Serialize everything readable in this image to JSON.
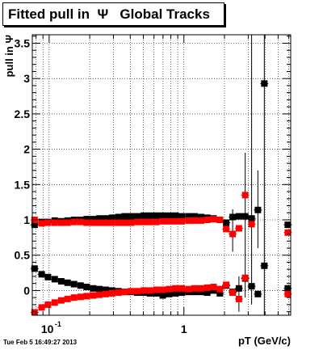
{
  "header": {
    "title": "Fitted pull in  Ψ   Global Tracks"
  },
  "footer": {
    "timestamp": "Tue Feb  5 16:49:27 2013"
  },
  "chart_data": {
    "type": "scatter",
    "title": "Fitted pull in  Ψ   Global Tracks",
    "xlabel": "pT (GeV/c)",
    "ylabel": "pull in Ψ",
    "xscale": "log",
    "xlim": [
      0.075,
      6.2
    ],
    "ylim": [
      -0.35,
      3.62
    ],
    "x_ticks": [
      {
        "value": 0.1,
        "base": "10",
        "exp": "-1"
      },
      {
        "value": 1,
        "label": "1"
      }
    ],
    "y_ticks": [
      0,
      0.5,
      1,
      1.5,
      2,
      2.5,
      3,
      3.5
    ],
    "grid": true,
    "colors": {
      "mean": "#000000",
      "sigma": "#ff0000"
    },
    "series": [
      {
        "color": "#000000",
        "points": [
          {
            "x": 0.078,
            "y": 0.93
          },
          {
            "x": 0.088,
            "y": 0.97
          },
          {
            "x": 0.098,
            "y": 0.97
          },
          {
            "x": 0.11,
            "y": 0.99
          },
          {
            "x": 0.123,
            "y": 0.98
          },
          {
            "x": 0.137,
            "y": 0.99
          },
          {
            "x": 0.153,
            "y": 1.0
          },
          {
            "x": 0.171,
            "y": 1.0
          },
          {
            "x": 0.19,
            "y": 1.01
          },
          {
            "x": 0.212,
            "y": 1.01
          },
          {
            "x": 0.236,
            "y": 1.02
          },
          {
            "x": 0.263,
            "y": 1.02
          },
          {
            "x": 0.293,
            "y": 1.03
          },
          {
            "x": 0.327,
            "y": 1.04
          },
          {
            "x": 0.364,
            "y": 1.05
          },
          {
            "x": 0.406,
            "y": 1.05
          },
          {
            "x": 0.452,
            "y": 1.05
          },
          {
            "x": 0.504,
            "y": 1.06
          },
          {
            "x": 0.561,
            "y": 1.06
          },
          {
            "x": 0.625,
            "y": 1.06
          },
          {
            "x": 0.697,
            "y": 1.06
          },
          {
            "x": 0.777,
            "y": 1.06
          },
          {
            "x": 0.866,
            "y": 1.06
          },
          {
            "x": 0.965,
            "y": 1.05
          },
          {
            "x": 1.08,
            "y": 1.05
          },
          {
            "x": 1.2,
            "y": 1.05
          },
          {
            "x": 1.34,
            "y": 1.04
          },
          {
            "x": 1.49,
            "y": 1.03
          },
          {
            "x": 1.66,
            "y": 1.02
          },
          {
            "x": 1.85,
            "y": 1.0
          },
          {
            "x": 2.06,
            "y": 0.96
          },
          {
            "x": 2.3,
            "y": 1.04
          },
          {
            "x": 2.56,
            "y": 1.05
          },
          {
            "x": 2.85,
            "y": 1.05
          },
          {
            "x": 3.18,
            "y": 1.02
          },
          {
            "x": 3.54,
            "y": 1.14
          },
          {
            "x": 3.95,
            "y": 2.93
          },
          {
            "x": 5.9,
            "y": 0.93
          }
        ]
      },
      {
        "color": "#ff0000",
        "points": [
          {
            "x": 0.078,
            "y": 1.0
          },
          {
            "x": 0.088,
            "y": 0.95
          },
          {
            "x": 0.098,
            "y": 0.96
          },
          {
            "x": 0.11,
            "y": 0.96
          },
          {
            "x": 0.123,
            "y": 0.96
          },
          {
            "x": 0.137,
            "y": 0.96
          },
          {
            "x": 0.153,
            "y": 0.97
          },
          {
            "x": 0.171,
            "y": 0.97
          },
          {
            "x": 0.19,
            "y": 0.96
          },
          {
            "x": 0.212,
            "y": 0.96
          },
          {
            "x": 0.236,
            "y": 0.96
          },
          {
            "x": 0.263,
            "y": 0.96
          },
          {
            "x": 0.293,
            "y": 0.96
          },
          {
            "x": 0.327,
            "y": 0.96
          },
          {
            "x": 0.364,
            "y": 0.96
          },
          {
            "x": 0.406,
            "y": 0.96
          },
          {
            "x": 0.452,
            "y": 0.97
          },
          {
            "x": 0.504,
            "y": 0.97
          },
          {
            "x": 0.561,
            "y": 0.97
          },
          {
            "x": 0.625,
            "y": 0.97
          },
          {
            "x": 0.697,
            "y": 0.98
          },
          {
            "x": 0.777,
            "y": 0.98
          },
          {
            "x": 0.866,
            "y": 0.98
          },
          {
            "x": 0.965,
            "y": 0.98
          },
          {
            "x": 1.08,
            "y": 0.99
          },
          {
            "x": 1.2,
            "y": 0.99
          },
          {
            "x": 1.34,
            "y": 0.99
          },
          {
            "x": 1.49,
            "y": 1.0
          },
          {
            "x": 1.66,
            "y": 1.01
          },
          {
            "x": 1.85,
            "y": 1.0
          },
          {
            "x": 2.06,
            "y": 0.87
          },
          {
            "x": 2.3,
            "y": 0.8
          },
          {
            "x": 2.56,
            "y": 0.88
          },
          {
            "x": 2.85,
            "y": 1.35
          },
          {
            "x": 3.18,
            "y": 0.94
          },
          {
            "x": 5.9,
            "y": 0.82
          }
        ]
      },
      {
        "color": "#000000",
        "points": [
          {
            "x": 0.078,
            "y": 0.31
          },
          {
            "x": 0.088,
            "y": 0.23
          },
          {
            "x": 0.098,
            "y": 0.19
          },
          {
            "x": 0.11,
            "y": 0.16
          },
          {
            "x": 0.123,
            "y": 0.13
          },
          {
            "x": 0.137,
            "y": 0.11
          },
          {
            "x": 0.153,
            "y": 0.09
          },
          {
            "x": 0.171,
            "y": 0.07
          },
          {
            "x": 0.19,
            "y": 0.05
          },
          {
            "x": 0.212,
            "y": 0.03
          },
          {
            "x": 0.236,
            "y": 0.02
          },
          {
            "x": 0.263,
            "y": 0.01
          },
          {
            "x": 0.293,
            "y": 0.0
          },
          {
            "x": 0.327,
            "y": -0.01
          },
          {
            "x": 0.364,
            "y": -0.02
          },
          {
            "x": 0.406,
            "y": -0.02
          },
          {
            "x": 0.452,
            "y": -0.03
          },
          {
            "x": 0.504,
            "y": -0.03
          },
          {
            "x": 0.561,
            "y": -0.04
          },
          {
            "x": 0.625,
            "y": -0.04
          },
          {
            "x": 0.697,
            "y": -0.07
          },
          {
            "x": 0.777,
            "y": -0.05
          },
          {
            "x": 0.866,
            "y": -0.04
          },
          {
            "x": 0.965,
            "y": -0.03
          },
          {
            "x": 1.08,
            "y": -0.02
          },
          {
            "x": 1.2,
            "y": -0.02
          },
          {
            "x": 1.34,
            "y": -0.02
          },
          {
            "x": 1.49,
            "y": -0.03
          },
          {
            "x": 1.66,
            "y": 0.0
          },
          {
            "x": 1.85,
            "y": -0.04
          },
          {
            "x": 2.06,
            "y": 0.07
          },
          {
            "x": 2.3,
            "y": -0.02
          },
          {
            "x": 2.56,
            "y": 0.03
          },
          {
            "x": 2.85,
            "y": 0.17
          },
          {
            "x": 3.18,
            "y": 0.06
          },
          {
            "x": 3.54,
            "y": -0.05
          },
          {
            "x": 3.95,
            "y": 0.35
          },
          {
            "x": 5.9,
            "y": 0.03
          }
        ]
      },
      {
        "color": "#ff0000",
        "points": [
          {
            "x": 0.078,
            "y": -0.31
          },
          {
            "x": 0.088,
            "y": -0.24
          },
          {
            "x": 0.098,
            "y": -0.2
          },
          {
            "x": 0.11,
            "y": -0.17
          },
          {
            "x": 0.123,
            "y": -0.14
          },
          {
            "x": 0.137,
            "y": -0.12
          },
          {
            "x": 0.153,
            "y": -0.1
          },
          {
            "x": 0.171,
            "y": -0.09
          },
          {
            "x": 0.19,
            "y": -0.08
          },
          {
            "x": 0.212,
            "y": -0.07
          },
          {
            "x": 0.236,
            "y": -0.06
          },
          {
            "x": 0.263,
            "y": -0.05
          },
          {
            "x": 0.293,
            "y": -0.04
          },
          {
            "x": 0.327,
            "y": -0.03
          },
          {
            "x": 0.364,
            "y": -0.02
          },
          {
            "x": 0.406,
            "y": -0.01
          },
          {
            "x": 0.452,
            "y": -0.01
          },
          {
            "x": 0.504,
            "y": 0.0
          },
          {
            "x": 0.561,
            "y": 0.0
          },
          {
            "x": 0.625,
            "y": 0.01
          },
          {
            "x": 0.697,
            "y": 0.01
          },
          {
            "x": 0.777,
            "y": 0.02
          },
          {
            "x": 0.866,
            "y": 0.03
          },
          {
            "x": 0.965,
            "y": 0.03
          },
          {
            "x": 1.08,
            "y": 0.02
          },
          {
            "x": 1.2,
            "y": 0.03
          },
          {
            "x": 1.34,
            "y": 0.03
          },
          {
            "x": 1.49,
            "y": 0.04
          },
          {
            "x": 1.66,
            "y": 0.05
          },
          {
            "x": 1.85,
            "y": 0.02
          },
          {
            "x": 2.06,
            "y": 0.08
          },
          {
            "x": 2.3,
            "y": -0.03
          },
          {
            "x": 2.56,
            "y": -0.12
          },
          {
            "x": 2.85,
            "y": 0.18
          },
          {
            "x": 5.9,
            "y": -0.05
          }
        ]
      }
    ],
    "error_bars": [
      {
        "x": 2.85,
        "y_low": -0.1,
        "y_high": 1.95
      },
      {
        "x": 3.18,
        "y_low": -0.2,
        "y_high": 3.62
      },
      {
        "x": 3.54,
        "y_low": 0.6,
        "y_high": 1.7
      },
      {
        "x": 3.95,
        "y_low": -0.35,
        "y_high": 3.62
      },
      {
        "x": 2.3,
        "y_low": 0.55,
        "y_high": 1.15
      },
      {
        "x": 2.56,
        "y_low": -0.3,
        "y_high": 0.2
      }
    ]
  }
}
